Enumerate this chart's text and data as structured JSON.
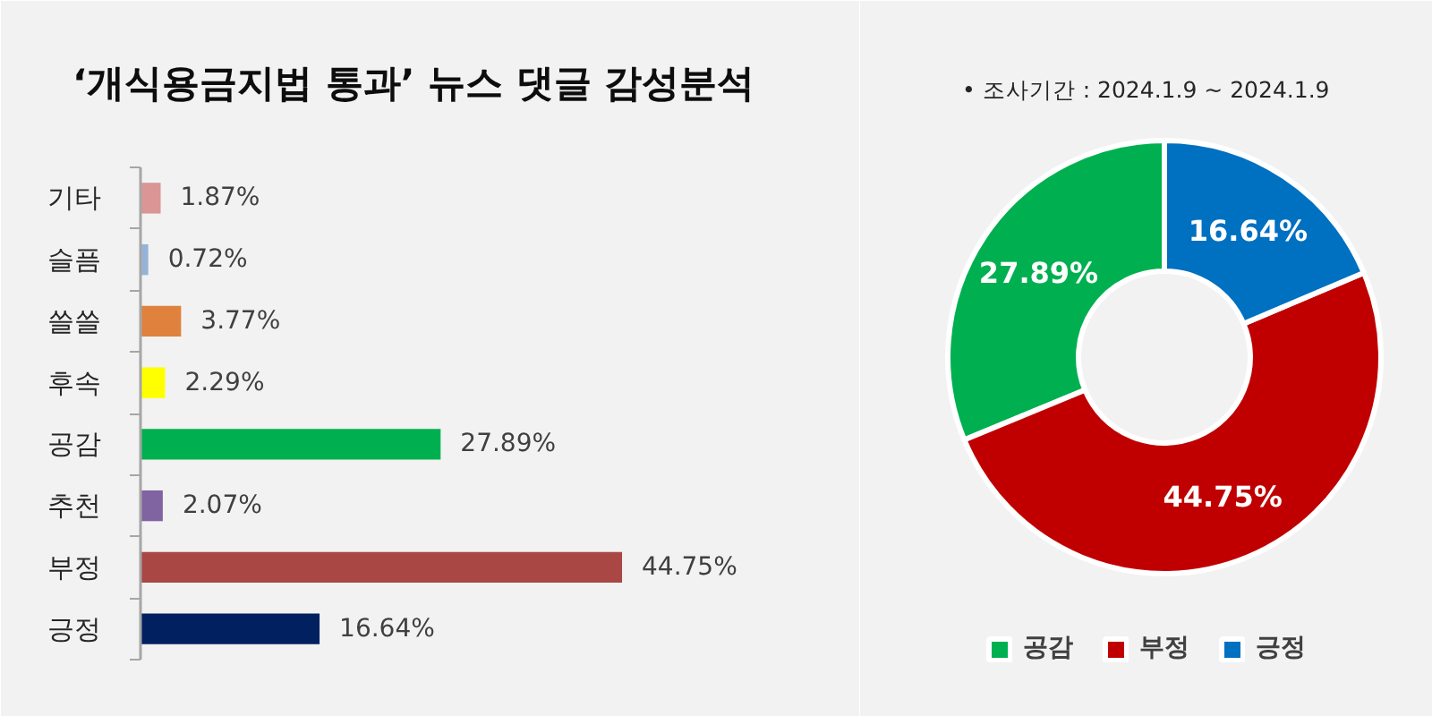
{
  "chart_data": [
    {
      "type": "bar",
      "title": "‘개식용금지법 통과’ 뉴스 댓글 감성분석",
      "orientation": "horizontal",
      "grid": false,
      "tick_labels": "y",
      "categories": [
        "기타",
        "슬픔",
        "쓸쓸",
        "후속",
        "공감",
        "추천",
        "부정",
        "긍정"
      ],
      "values": [
        1.87,
        0.72,
        3.77,
        2.29,
        27.89,
        2.07,
        44.75,
        16.64
      ],
      "colors": [
        "#d99694",
        "#95b3d7",
        "#e0823d",
        "#ffff00",
        "#00b050",
        "#8064a2",
        "#a94744",
        "#002060"
      ],
      "value_labels": [
        "1.87%",
        "0.72%",
        "3.77%",
        "2.29%",
        "27.89%",
        "2.07%",
        "44.75%",
        "16.64%"
      ]
    },
    {
      "type": "donut",
      "categories": [
        "공감",
        "부정",
        "긍정"
      ],
      "values": [
        27.89,
        44.75,
        16.64
      ],
      "colors": [
        "#00b050",
        "#c00000",
        "#0070c0"
      ],
      "value_labels": [
        "27.89%",
        "44.75%",
        "16.64%"
      ],
      "legend": "bottom",
      "annotations": [
        "• 조사기간 : 2024.1.9 ~ 2024.1.9"
      ]
    }
  ]
}
